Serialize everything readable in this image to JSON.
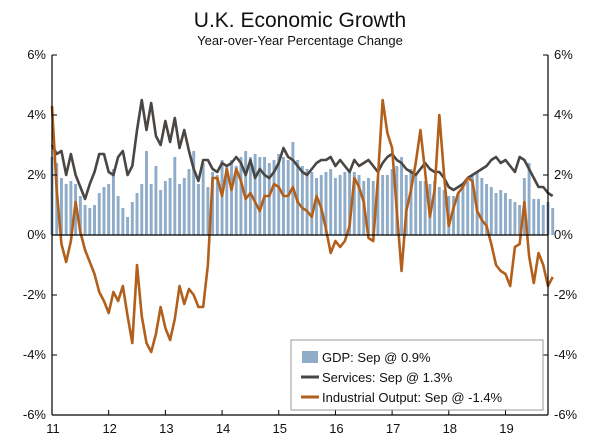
{
  "chart_data": {
    "type": "bar+line",
    "title": "U.K. Economic Growth",
    "subtitle": "Year-over-Year Percentage Change",
    "ylim": [
      -6,
      6
    ],
    "y_ticks": [
      6,
      4,
      2,
      0,
      -2,
      -4,
      -6
    ],
    "y_tick_labels": [
      "6%",
      "4%",
      "2%",
      "0%",
      "-2%",
      "-4%",
      "-6%"
    ],
    "x_start": 2011.0,
    "x_end": 2019.75,
    "x_ticks": [
      2011,
      2012,
      2013,
      2014,
      2015,
      2016,
      2017,
      2018,
      2019
    ],
    "x_tick_labels": [
      "11",
      "12",
      "13",
      "14",
      "15",
      "16",
      "17",
      "18",
      "19"
    ],
    "colors": {
      "gdp": "#8facc8",
      "services": "#4a4643",
      "industrial": "#b35f1c",
      "axis": "#000000",
      "zero_line": "#000000"
    },
    "series": [
      {
        "name": "GDP",
        "kind": "bar",
        "legend": "GDP: Sep @ 0.9%",
        "x_start": 2011.0,
        "step": 0.08333,
        "values": [
          2.6,
          2.4,
          1.9,
          1.7,
          1.8,
          1.7,
          1.3,
          1.0,
          0.9,
          1.0,
          1.4,
          1.6,
          1.7,
          2.2,
          1.3,
          0.9,
          0.6,
          1.1,
          1.4,
          1.7,
          2.8,
          1.7,
          2.3,
          1.5,
          1.8,
          1.9,
          2.6,
          1.7,
          1.9,
          2.2,
          2.8,
          1.7,
          2.4,
          1.6,
          2.1,
          2.0,
          2.5,
          2.3,
          2.5,
          2.3,
          2.6,
          2.8,
          2.6,
          2.7,
          2.6,
          2.6,
          2.4,
          2.5,
          2.7,
          2.6,
          2.5,
          3.1,
          2.5,
          2.3,
          2.2,
          2.1,
          1.9,
          2.0,
          2.1,
          2.2,
          1.9,
          2.0,
          2.1,
          2.2,
          2.1,
          2.0,
          1.8,
          1.9,
          1.8,
          1.9,
          2.0,
          2.0,
          2.2,
          2.3,
          2.6,
          2.0,
          2.2,
          2.0,
          1.8,
          1.8,
          1.7,
          1.8,
          1.6,
          1.5,
          1.3,
          1.3,
          1.4,
          1.7,
          1.8,
          2.0,
          2.1,
          1.9,
          1.7,
          1.6,
          1.4,
          1.5,
          1.4,
          1.2,
          1.1,
          1.0,
          1.9,
          2.4,
          1.2,
          1.2,
          1.0,
          1.1,
          0.9
        ]
      },
      {
        "name": "Services",
        "kind": "line",
        "legend": "Services: Sep @ 1.3%",
        "x_start": 2011.0,
        "step": 0.08333,
        "values": [
          3.0,
          2.7,
          2.8,
          2.0,
          2.7,
          2.0,
          1.6,
          1.2,
          1.7,
          2.1,
          2.7,
          2.7,
          2.1,
          2.0,
          2.6,
          2.8,
          2.0,
          2.3,
          3.5,
          4.5,
          3.5,
          4.4,
          3.3,
          3.0,
          3.8,
          3.1,
          3.9,
          2.9,
          3.5,
          2.8,
          2.2,
          1.8,
          2.5,
          2.5,
          2.2,
          2.1,
          2.4,
          2.3,
          2.4,
          2.6,
          2.4,
          2.0,
          2.5,
          1.9,
          2.2,
          2.0,
          1.9,
          2.1,
          2.4,
          2.9,
          2.6,
          2.5,
          2.3,
          2.1,
          2.0,
          2.2,
          2.4,
          2.5,
          2.5,
          2.6,
          2.3,
          2.5,
          2.3,
          2.1,
          2.5,
          2.3,
          2.4,
          2.5,
          2.3,
          2.1,
          2.4,
          2.6,
          2.7,
          2.5,
          2.4,
          2.2,
          2.1,
          2.0,
          2.2,
          2.4,
          2.2,
          2.1,
          2.1,
          1.9,
          1.6,
          1.5,
          1.6,
          1.7,
          1.9,
          2.0,
          2.1,
          2.2,
          2.3,
          2.5,
          2.6,
          2.4,
          2.5,
          2.3,
          2.1,
          2.6,
          2.5,
          2.2,
          1.9,
          1.6,
          1.6,
          1.4,
          1.3
        ]
      },
      {
        "name": "Industrial Output",
        "kind": "line",
        "legend": "Industrial Output: Sep @ -1.4%",
        "x_start": 2011.0,
        "step": 0.08333,
        "values": [
          4.3,
          1.5,
          -0.3,
          -0.9,
          -0.2,
          1.1,
          0.1,
          -0.5,
          -0.9,
          -1.3,
          -1.9,
          -2.2,
          -2.6,
          -1.9,
          -2.2,
          -1.7,
          -2.7,
          -3.6,
          -1.0,
          -2.7,
          -3.6,
          -3.9,
          -3.3,
          -2.4,
          -3.1,
          -3.5,
          -2.8,
          -1.7,
          -2.3,
          -1.8,
          -2.0,
          -2.4,
          -2.4,
          -1.0,
          1.9,
          1.9,
          1.3,
          2.2,
          1.5,
          2.2,
          1.8,
          1.2,
          1.4,
          1.1,
          0.8,
          1.3,
          1.3,
          1.7,
          1.6,
          1.3,
          1.3,
          1.6,
          1.1,
          0.9,
          0.8,
          0.6,
          1.3,
          0.9,
          0.2,
          -0.6,
          -0.2,
          -0.4,
          -0.2,
          0.3,
          1.9,
          1.6,
          1.1,
          -0.1,
          -0.2,
          1.9,
          4.5,
          3.4,
          2.9,
          0.8,
          -1.2,
          0.8,
          1.5,
          2.4,
          3.5,
          2.1,
          0.6,
          1.5,
          4.0,
          2.0,
          0.3,
          0.9,
          1.4,
          1.6,
          1.9,
          1.8,
          0.8,
          0.5,
          0.3,
          -0.3,
          -1.0,
          -1.2,
          -1.3,
          -1.7,
          -0.4,
          -0.3,
          1.1,
          -0.7,
          -1.6,
          -0.6,
          -1.0,
          -1.7,
          -1.4
        ]
      }
    ],
    "legend_placement": "bottom-right"
  }
}
